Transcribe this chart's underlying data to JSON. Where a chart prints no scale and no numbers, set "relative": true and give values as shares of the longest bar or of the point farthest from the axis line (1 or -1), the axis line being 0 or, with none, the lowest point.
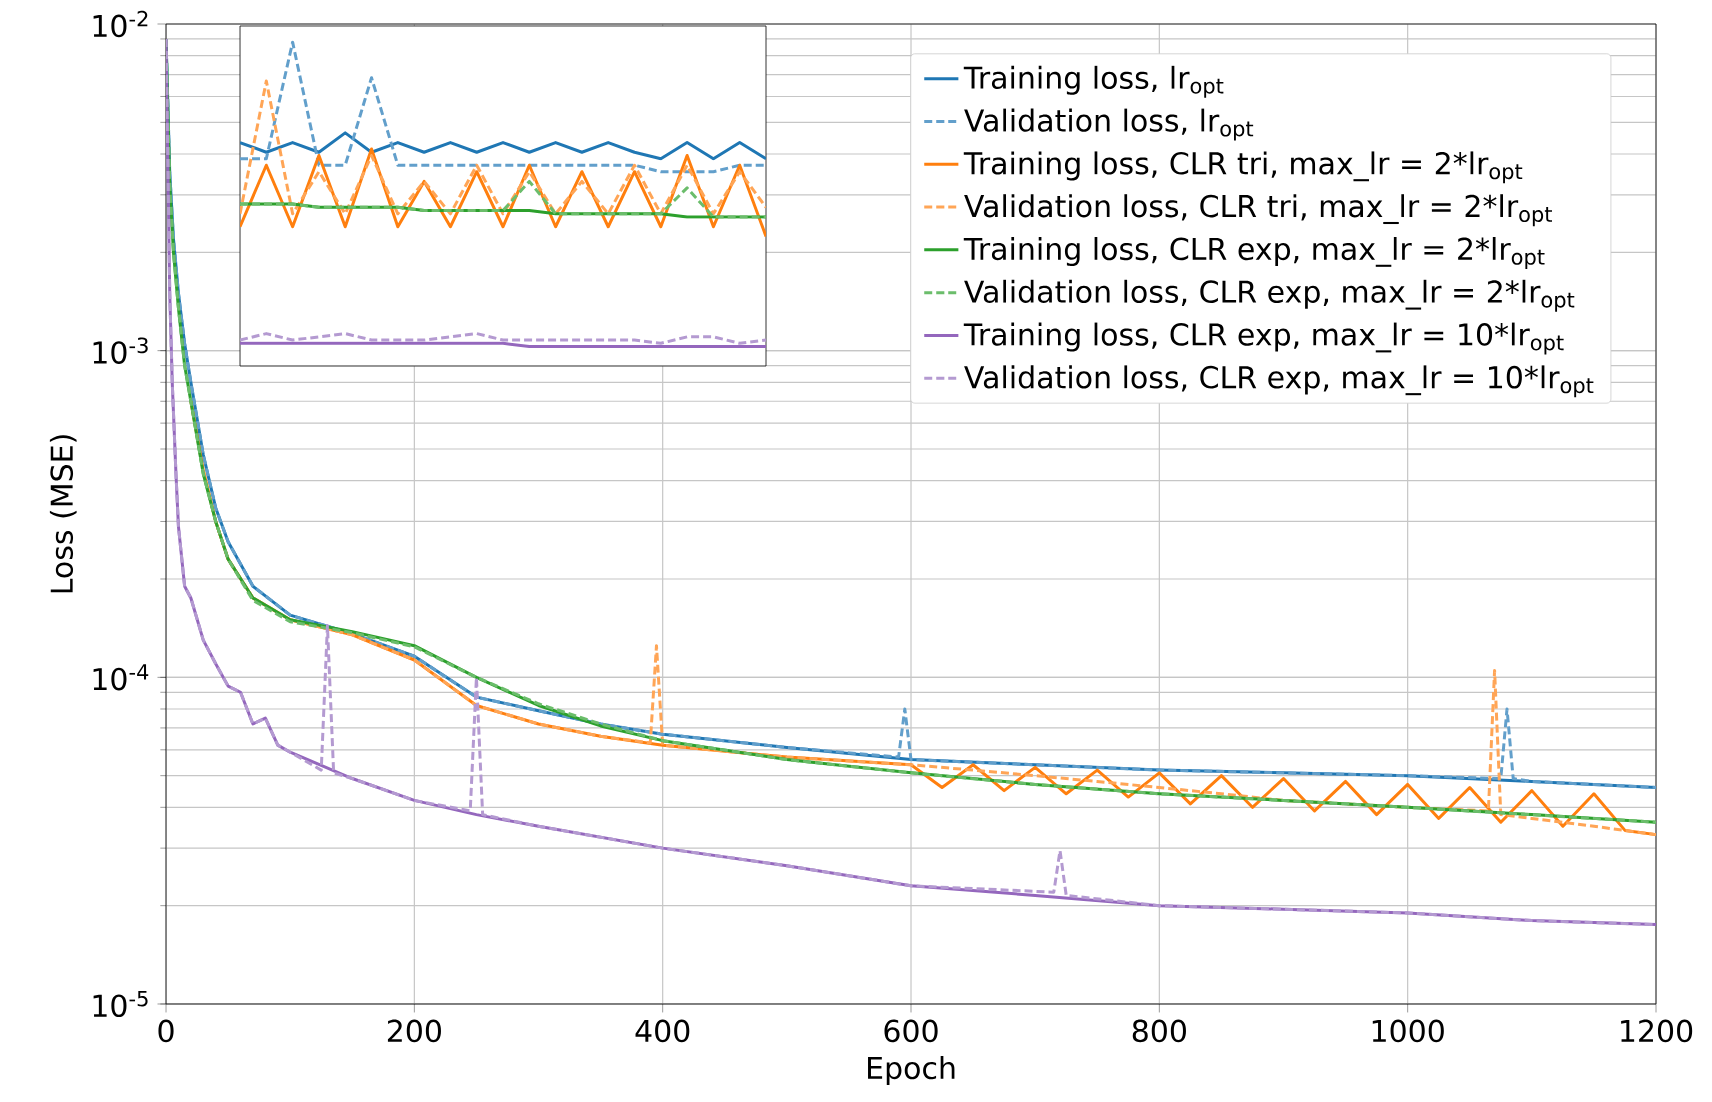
{
  "chart_data": [
    {
      "type": "line",
      "xlabel": "Epoch",
      "ylabel": "Loss (MSE)",
      "log": "y",
      "grid": true,
      "legend": "top right",
      "xlim": [
        0,
        1200
      ],
      "xticks": [
        0,
        200,
        400,
        600,
        800,
        1000,
        1200
      ],
      "ylim": [
        1e-05,
        0.01
      ],
      "yticks": [
        {
          "value": 1e-05,
          "label": "10$^{-5}$"
        },
        {
          "value": 0.0001,
          "label": "10$^{-4}$"
        },
        {
          "value": 0.001,
          "label": "10$^{-3}$"
        },
        {
          "value": 0.01,
          "label": "10$^{-2}$"
        }
      ],
      "series": [
        {
          "name": "Training loss, lr$_{opt}$",
          "color": "#1f77b4",
          "line_style": "solid",
          "x": [
            0,
            3,
            6,
            10,
            15,
            20,
            30,
            40,
            50,
            70,
            100,
            150,
            200,
            250,
            300,
            350,
            400,
            500,
            600,
            700,
            800,
            900,
            1000,
            1100,
            1200
          ],
          "values": [
            0.009,
            0.0035,
            0.0022,
            0.0015,
            0.00105,
            0.0008,
            0.00048,
            0.00033,
            0.00026,
            0.00019,
            0.000155,
            0.000136,
            0.000116,
            8.7e-05,
            7.9e-05,
            7.2e-05,
            6.7e-05,
            6.1e-05,
            5.6e-05,
            5.4e-05,
            5.2e-05,
            5.1e-05,
            5e-05,
            4.8e-05,
            4.6e-05
          ]
        },
        {
          "name": "Validation loss, lr$_{opt}$",
          "color": "#629fcb",
          "line_style": "dashed",
          "x": [
            0,
            3,
            6,
            10,
            15,
            20,
            30,
            40,
            50,
            70,
            100,
            150,
            200,
            250,
            300,
            350,
            400,
            500,
            590,
            595,
            600,
            700,
            800,
            900,
            1000,
            1075,
            1080,
            1085,
            1100,
            1200
          ],
          "values": [
            0.009,
            0.0035,
            0.0022,
            0.0015,
            0.00105,
            0.0008,
            0.00048,
            0.00033,
            0.00026,
            0.00019,
            0.000155,
            0.000136,
            0.000116,
            8.7e-05,
            7.9e-05,
            7.2e-05,
            6.7e-05,
            6.1e-05,
            5.7e-05,
            8e-05,
            5.6e-05,
            5.4e-05,
            5.2e-05,
            5.1e-05,
            5e-05,
            4.9e-05,
            8e-05,
            4.9e-05,
            4.8e-05,
            4.6e-05
          ]
        },
        {
          "name": "Training loss, CLR tri, max_lr = 2*lr$_{opt}$",
          "color": "#ff7f0e",
          "line_style": "solid",
          "x": [
            20,
            30,
            40,
            50,
            70,
            100,
            150,
            200,
            250,
            300,
            350,
            400,
            500,
            600,
            625,
            650,
            675,
            700,
            725,
            750,
            775,
            800,
            825,
            850,
            875,
            900,
            925,
            950,
            975,
            1000,
            1025,
            1050,
            1075,
            1100,
            1125,
            1150,
            1175,
            1200
          ],
          "values": [
            0.0007,
            0.00043,
            0.0003,
            0.00023,
            0.000175,
            0.00015,
            0.000135,
            0.000113,
            8.2e-05,
            7.2e-05,
            6.6e-05,
            6.2e-05,
            5.7e-05,
            5.4e-05,
            4.6e-05,
            5.4e-05,
            4.5e-05,
            5.3e-05,
            4.4e-05,
            5.2e-05,
            4.3e-05,
            5.1e-05,
            4.1e-05,
            5e-05,
            4e-05,
            4.9e-05,
            3.9e-05,
            4.8e-05,
            3.8e-05,
            4.7e-05,
            3.7e-05,
            4.6e-05,
            3.6e-05,
            4.5e-05,
            3.5e-05,
            4.4e-05,
            3.4e-05,
            3.3e-05
          ]
        },
        {
          "name": "Validation loss, CLR tri, max_lr = 2*lr$_{opt}$",
          "color": "#ffa556",
          "line_style": "dashed",
          "x": [
            30,
            40,
            50,
            70,
            100,
            150,
            200,
            250,
            300,
            350,
            390,
            395,
            400,
            500,
            600,
            650,
            700,
            750,
            800,
            850,
            900,
            950,
            1000,
            1065,
            1070,
            1075,
            1100,
            1150,
            1200
          ],
          "values": [
            0.00043,
            0.0003,
            0.00023,
            0.000175,
            0.00015,
            0.000135,
            0.000113,
            8.2e-05,
            7.2e-05,
            6.6e-05,
            6.3e-05,
            0.000125,
            6.2e-05,
            5.7e-05,
            5.4e-05,
            5.2e-05,
            5e-05,
            4.8e-05,
            4.6e-05,
            4.4e-05,
            4.2e-05,
            4.1e-05,
            4e-05,
            3.9e-05,
            0.000105,
            3.8e-05,
            3.7e-05,
            3.5e-05,
            3.3e-05
          ]
        },
        {
          "name": "Training loss, CLR exp, max_lr = 2*lr$_{opt}$",
          "color": "#2ca02c",
          "line_style": "solid",
          "x": [
            0,
            3,
            6,
            10,
            15,
            20,
            30,
            40,
            50,
            70,
            100,
            150,
            200,
            250,
            300,
            350,
            400,
            500,
            600,
            700,
            800,
            900,
            1000,
            1100,
            1200
          ],
          "values": [
            0.009,
            0.0032,
            0.002,
            0.00135,
            0.0009,
            0.0007,
            0.00042,
            0.0003,
            0.00023,
            0.000175,
            0.00015,
            0.000138,
            0.000125,
            0.0001,
            8.2e-05,
            7.1e-05,
            6.4e-05,
            5.6e-05,
            5.1e-05,
            4.7e-05,
            4.4e-05,
            4.2e-05,
            4e-05,
            3.8e-05,
            3.6e-05
          ]
        },
        {
          "name": "Validation loss, CLR exp, max_lr = 2*lr$_{opt}$",
          "color": "#6bbd6b",
          "line_style": "dashed",
          "x": [
            0,
            3,
            6,
            10,
            15,
            20,
            30,
            40,
            50,
            70,
            100,
            150,
            200,
            250,
            300,
            350,
            400,
            500,
            600,
            700,
            800,
            900,
            1000,
            1100,
            1200
          ],
          "values": [
            0.009,
            0.0032,
            0.002,
            0.00135,
            0.0009,
            0.0007,
            0.00042,
            0.0003,
            0.00023,
            0.000172,
            0.000148,
            0.000137,
            0.000124,
            0.0001,
            8.3e-05,
            7.2e-05,
            6.4e-05,
            5.6e-05,
            5.1e-05,
            4.7e-05,
            4.4e-05,
            4.2e-05,
            4e-05,
            3.8e-05,
            3.6e-05
          ]
        },
        {
          "name": "Training loss, CLR exp, max_lr = 10*lr$_{opt}$",
          "color": "#9467bd",
          "line_style": "solid",
          "x": [
            0,
            3,
            5,
            8,
            10,
            15,
            20,
            30,
            40,
            50,
            60,
            70,
            80,
            90,
            100,
            150,
            200,
            250,
            300,
            400,
            500,
            600,
            700,
            800,
            900,
            1000,
            1100,
            1200
          ],
          "values": [
            0.009,
            0.0015,
            0.0008,
            0.00042,
            0.00029,
            0.00019,
            0.000175,
            0.00013,
            0.00011,
            9.4e-05,
            9e-05,
            7.2e-05,
            7.5e-05,
            6.2e-05,
            5.9e-05,
            4.9e-05,
            4.2e-05,
            3.8e-05,
            3.5e-05,
            3e-05,
            2.65e-05,
            2.3e-05,
            2.15e-05,
            2e-05,
            1.95e-05,
            1.9e-05,
            1.8e-05,
            1.75e-05
          ]
        },
        {
          "name": "Validation loss, CLR exp, max_lr = 10*lr$_{opt}$",
          "color": "#b49ad1",
          "line_style": "dashed",
          "x": [
            0,
            3,
            5,
            8,
            10,
            15,
            20,
            30,
            40,
            50,
            60,
            70,
            80,
            90,
            100,
            125,
            130,
            135,
            150,
            200,
            245,
            250,
            255,
            300,
            400,
            500,
            600,
            715,
            720,
            725,
            800,
            900,
            1000,
            1100,
            1200
          ],
          "values": [
            0.009,
            0.0015,
            0.0008,
            0.00042,
            0.00029,
            0.00019,
            0.000175,
            0.00013,
            0.00011,
            9.4e-05,
            9e-05,
            7.2e-05,
            7.5e-05,
            6.2e-05,
            5.9e-05,
            5.2e-05,
            0.000144,
            5.1e-05,
            4.9e-05,
            4.2e-05,
            3.9e-05,
            0.0001,
            3.8e-05,
            3.5e-05,
            3e-05,
            2.65e-05,
            2.3e-05,
            2.2e-05,
            2.95e-05,
            2.15e-05,
            2e-05,
            1.95e-05,
            1.9e-05,
            1.8e-05,
            1.75e-05
          ]
        }
      ]
    },
    {
      "type": "line",
      "relative": true,
      "categories": [
        null,
        null,
        null,
        null,
        null,
        null,
        null,
        null,
        null,
        null,
        null,
        null,
        null,
        null,
        null,
        null,
        null,
        null,
        null,
        null,
        null
      ],
      "series": [
        {
          "color": "#1f77b4",
          "line_style": "solid",
          "values": [
            0.69,
            0.66,
            0.69,
            0.66,
            0.72,
            0.66,
            0.69,
            0.66,
            0.69,
            0.66,
            0.69,
            0.66,
            0.69,
            0.66,
            0.69,
            0.66,
            0.64,
            0.69,
            0.64,
            0.69,
            0.64
          ]
        },
        {
          "color": "#629fcb",
          "line_style": "dashed",
          "values": [
            0.64,
            0.64,
            1.0,
            0.62,
            0.62,
            0.89,
            0.62,
            0.62,
            0.62,
            0.62,
            0.62,
            0.62,
            0.62,
            0.62,
            0.62,
            0.62,
            0.6,
            0.6,
            0.6,
            0.62,
            0.62
          ]
        },
        {
          "color": "#ff7f0e",
          "line_style": "solid",
          "values": [
            0.43,
            0.62,
            0.43,
            0.65,
            0.43,
            0.67,
            0.43,
            0.57,
            0.43,
            0.6,
            0.43,
            0.62,
            0.43,
            0.6,
            0.43,
            0.6,
            0.43,
            0.65,
            0.43,
            0.62,
            0.4
          ]
        },
        {
          "color": "#ffa556",
          "line_style": "dashed",
          "values": [
            0.47,
            0.88,
            0.47,
            0.6,
            0.47,
            0.65,
            0.47,
            0.57,
            0.47,
            0.62,
            0.47,
            0.6,
            0.47,
            0.57,
            0.47,
            0.62,
            0.47,
            0.62,
            0.47,
            0.6,
            0.49
          ]
        },
        {
          "color": "#2ca02c",
          "line_style": "solid",
          "values": [
            0.5,
            0.5,
            0.5,
            0.49,
            0.49,
            0.49,
            0.49,
            0.48,
            0.48,
            0.48,
            0.48,
            0.48,
            0.47,
            0.47,
            0.47,
            0.47,
            0.47,
            0.46,
            0.46,
            0.46,
            0.46
          ]
        },
        {
          "color": "#6bbd6b",
          "line_style": "dashed",
          "values": [
            0.5,
            0.5,
            0.5,
            0.49,
            0.49,
            0.49,
            0.49,
            0.48,
            0.48,
            0.48,
            0.48,
            0.57,
            0.47,
            0.47,
            0.47,
            0.47,
            0.47,
            0.55,
            0.46,
            0.46,
            0.46
          ]
        },
        {
          "color": "#9467bd",
          "line_style": "solid",
          "values": [
            0.07,
            0.07,
            0.07,
            0.07,
            0.07,
            0.07,
            0.07,
            0.07,
            0.07,
            0.07,
            0.07,
            0.06,
            0.06,
            0.06,
            0.06,
            0.06,
            0.06,
            0.06,
            0.06,
            0.06,
            0.06
          ]
        },
        {
          "color": "#b49ad1",
          "line_style": "dashed",
          "values": [
            0.08,
            0.1,
            0.08,
            0.09,
            0.1,
            0.08,
            0.08,
            0.08,
            0.09,
            0.1,
            0.08,
            0.08,
            0.08,
            0.08,
            0.08,
            0.08,
            0.07,
            0.09,
            0.09,
            0.07,
            0.08
          ]
        }
      ]
    }
  ]
}
